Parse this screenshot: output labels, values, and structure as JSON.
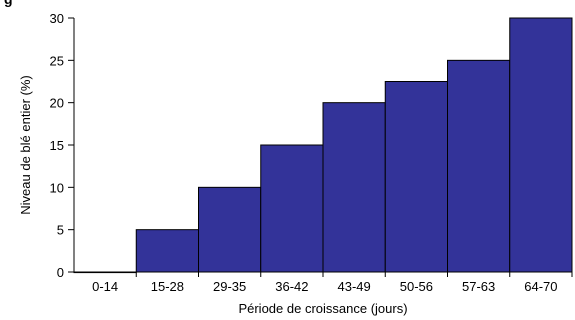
{
  "chart_data": {
    "type": "bar",
    "categories": [
      "0-14",
      "15-28",
      "29-35",
      "36-42",
      "43-49",
      "50-56",
      "57-63",
      "64-70"
    ],
    "values": [
      0,
      5,
      10,
      15,
      20,
      22.5,
      25,
      30
    ],
    "title_visible_fragment": "g",
    "xlabel": "Période de croissance (jours)",
    "ylabel": "Niveau de blé entier (%)",
    "ylim": [
      0,
      30
    ],
    "yticks": [
      "0",
      "5",
      "10",
      "15",
      "20",
      "25",
      "30"
    ],
    "bar_color": "#333399",
    "bar_edge_color": "#000000",
    "grid": false
  }
}
